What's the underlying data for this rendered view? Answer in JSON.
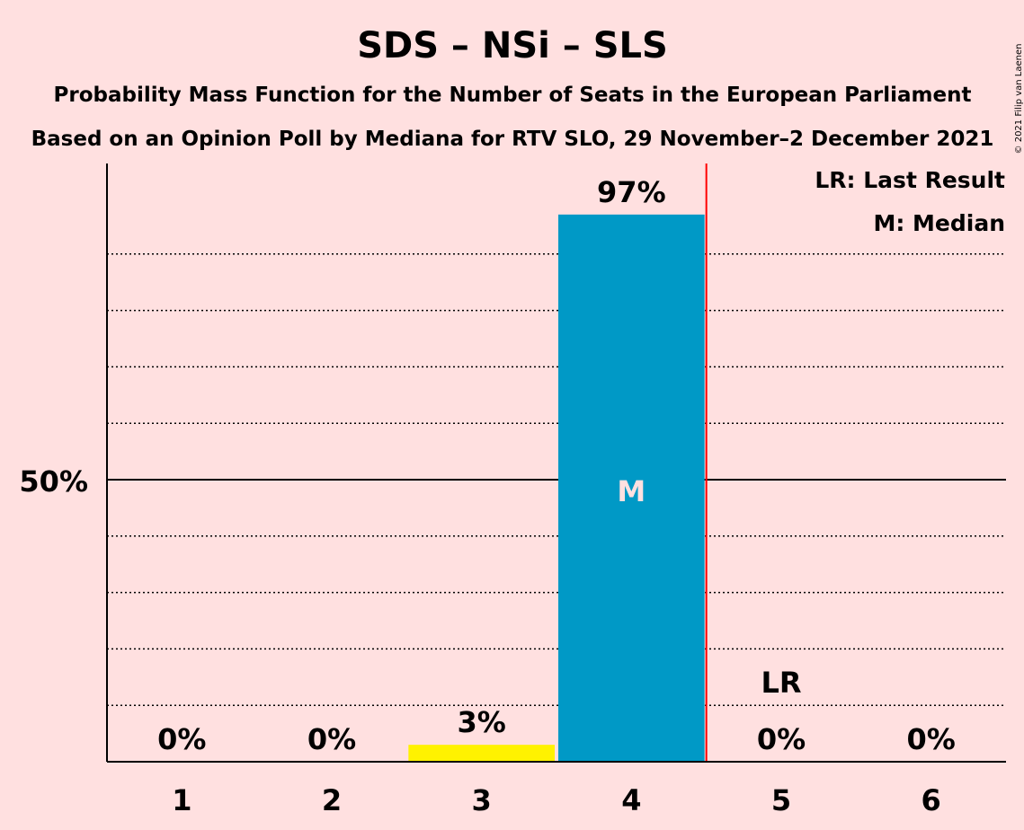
{
  "chart_data": {
    "type": "bar",
    "title": "SDS – NSi – SLS",
    "subtitle_1": "Probability Mass Function for the Number of Seats in the European Parliament",
    "subtitle_2": "Based on an Opinion Poll by Mediana for RTV SLO, 29 November–2 December 2021",
    "categories": [
      "1",
      "2",
      "3",
      "4",
      "5",
      "6"
    ],
    "values": [
      0,
      0,
      3,
      97,
      0,
      0
    ],
    "value_labels": [
      "0%",
      "0%",
      "3%",
      "97%",
      "0%",
      "0%"
    ],
    "bar_colors": [
      "#ffe0e0",
      "#ffe0e0",
      "#fff200",
      "#0099c6",
      "#ffe0e0",
      "#ffe0e0"
    ],
    "ylim": [
      0,
      100
    ],
    "y_tick_label": "50%",
    "y_tick_value": 50,
    "median_category": "4",
    "median_marker": "M",
    "last_result_category": "5",
    "last_result_marker": "LR",
    "last_result_line_color": "#ff0000",
    "legend": [
      "LR: Last Result",
      "M: Median"
    ],
    "legend_placement": "top-right",
    "grid": "dotted",
    "copyright": "© 2021 Filip van Laenen"
  }
}
